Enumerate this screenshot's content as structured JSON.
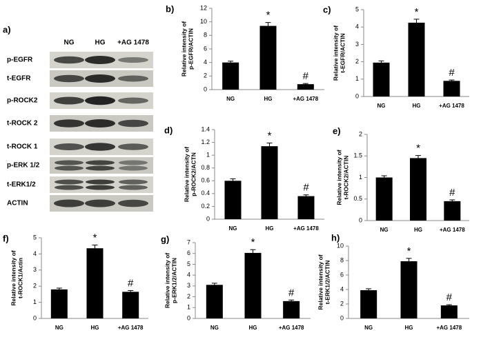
{
  "blot": {
    "panel": "a)",
    "columns": [
      "NG",
      "HG",
      "+AG 1478"
    ],
    "rows": [
      "p-EGFR",
      "t-EGFR",
      "p-ROCK2",
      "t-ROCK 2",
      "t-ROCK 1",
      "p-ERK 1/2",
      "t-ERK1/2",
      "ACTIN"
    ]
  },
  "chart_data": [
    {
      "type": "bar",
      "panel": "b)",
      "ylabel": [
        "Relative intensity of",
        "p-EGFR/ACTIN"
      ],
      "categories": [
        "NG",
        "HG",
        "+AG 1478"
      ],
      "values": [
        4.0,
        9.4,
        0.8
      ],
      "errors": [
        0.2,
        0.5,
        0.1
      ],
      "value_annotations": [
        null,
        "*",
        "#"
      ],
      "color": "#000000",
      "ylim": [
        0,
        12
      ],
      "yticks": [
        0,
        2,
        4,
        6,
        8,
        10,
        12
      ],
      "grid": false
    },
    {
      "type": "bar",
      "panel": "c)",
      "ylabel": [
        "Relative intensity of",
        "t-EGFR/ACTIN"
      ],
      "categories": [
        "NG",
        "HG",
        "+AG 1478"
      ],
      "values": [
        1.95,
        4.25,
        0.9
      ],
      "errors": [
        0.1,
        0.2,
        0.05
      ],
      "value_annotations": [
        null,
        "*",
        "#"
      ],
      "color": "#000000",
      "ylim": [
        0,
        5
      ],
      "yticks": [
        0,
        1,
        2,
        3,
        4,
        5
      ],
      "grid": false
    },
    {
      "type": "bar",
      "panel": "d)",
      "ylabel": [
        "Relative intensity of",
        "p-ROCK2/ACTN"
      ],
      "categories": [
        "NG",
        "HG",
        "+AG 1478"
      ],
      "values": [
        0.6,
        1.14,
        0.36
      ],
      "errors": [
        0.03,
        0.05,
        0.02
      ],
      "value_annotations": [
        null,
        "*",
        "#"
      ],
      "color": "#000000",
      "ylim": [
        0,
        1.4
      ],
      "yticks": [
        0,
        0.2,
        0.4,
        0.6,
        0.8,
        1,
        1.2,
        1.4
      ],
      "grid": false
    },
    {
      "type": "bar",
      "panel": "e)",
      "ylabel": [
        "Relative intensity of",
        "t-ROCK2/ACTIN"
      ],
      "categories": [
        "NG",
        "HG",
        "+AG 1478"
      ],
      "values": [
        1.0,
        1.45,
        0.45
      ],
      "errors": [
        0.04,
        0.06,
        0.03
      ],
      "value_annotations": [
        null,
        "*",
        "#"
      ],
      "color": "#000000",
      "ylim": [
        0,
        2
      ],
      "yticks": [
        0,
        0.5,
        1,
        1.5,
        2
      ],
      "grid": false
    },
    {
      "type": "bar",
      "panel": "f)",
      "ylabel": [
        "Relative intensity of",
        "t-ROCK1/Actin"
      ],
      "categories": [
        "NG",
        "HG",
        "+AG 1478"
      ],
      "values": [
        1.8,
        4.35,
        1.65
      ],
      "errors": [
        0.08,
        0.2,
        0.08
      ],
      "value_annotations": [
        null,
        "*",
        "#"
      ],
      "color": "#000000",
      "ylim": [
        0,
        5
      ],
      "yticks": [
        0,
        1,
        2,
        3,
        4,
        5
      ],
      "grid": false
    },
    {
      "type": "bar",
      "panel": "g)",
      "ylabel": [
        "Relative intensity of",
        "p-ERK1/2/ACTIN"
      ],
      "categories": [
        "NG",
        "HG",
        "+AG 1478"
      ],
      "values": [
        3.1,
        6.05,
        1.6
      ],
      "errors": [
        0.15,
        0.3,
        0.1
      ],
      "value_annotations": [
        null,
        "*",
        "#"
      ],
      "color": "#000000",
      "ylim": [
        0,
        7
      ],
      "yticks": [
        0,
        1,
        2,
        3,
        4,
        5,
        6,
        7
      ],
      "grid": false
    },
    {
      "type": "bar",
      "panel": "h)",
      "ylabel": [
        "Relative intensity of",
        "t-ERK1/2/ACTIN"
      ],
      "categories": [
        "NG",
        "HG",
        "+AG 1478"
      ],
      "values": [
        3.9,
        7.9,
        1.8
      ],
      "errors": [
        0.2,
        0.4,
        0.1
      ],
      "value_annotations": [
        null,
        "*",
        "#"
      ],
      "color": "#000000",
      "ylim": [
        0,
        10
      ],
      "yticks": [
        0,
        2,
        4,
        6,
        8,
        10
      ],
      "grid": false
    }
  ]
}
